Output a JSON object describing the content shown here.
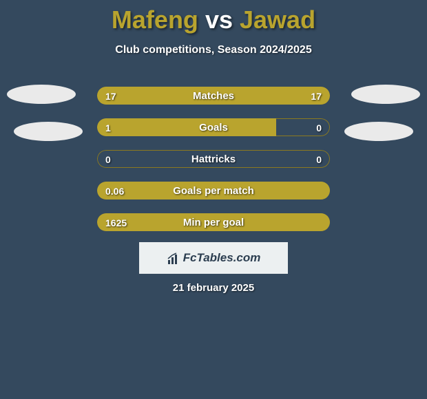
{
  "title": {
    "player1": "Mafeng",
    "vs": "vs",
    "player2": "Jawad",
    "player1_color": "#b9a42e",
    "player2_color": "#b9a42e"
  },
  "subtitle": "Club competitions, Season 2024/2025",
  "ovals": {
    "left_color": "#eaeaea",
    "right_color": "#eaeaea"
  },
  "stats": {
    "bar_color_left": "#b9a42e",
    "bar_color_right": "#b9a42e",
    "track_border": "#8c7a1f",
    "rows": [
      {
        "label": "Matches",
        "left": "17",
        "right": "17",
        "left_pct": 50,
        "right_pct": 50
      },
      {
        "label": "Goals",
        "left": "1",
        "right": "0",
        "left_pct": 77,
        "right_pct": 0
      },
      {
        "label": "Hattricks",
        "left": "0",
        "right": "0",
        "left_pct": 0,
        "right_pct": 0
      },
      {
        "label": "Goals per match",
        "left": "0.06",
        "right": "",
        "left_pct": 100,
        "right_pct": 0
      },
      {
        "label": "Min per goal",
        "left": "1625",
        "right": "",
        "left_pct": 100,
        "right_pct": 0
      }
    ]
  },
  "logo_text": "FcTables.com",
  "date": "21 february 2025",
  "background_color": "#34495e"
}
